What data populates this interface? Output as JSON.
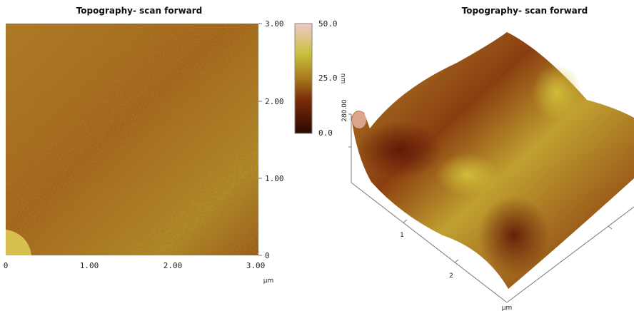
{
  "left": {
    "title": "Topography- scan forward",
    "y_ticks": [
      "3.00",
      "2.00",
      "1.00",
      "0"
    ],
    "x_ticks": [
      "0",
      "1.00",
      "2.00",
      "3.00"
    ],
    "x_unit": "µm",
    "colorbar": {
      "ticks": [
        "50.0",
        "25.0",
        "0.0"
      ],
      "unit": "nm"
    }
  },
  "right": {
    "title": "Topography- scan forward",
    "z_label": "280.00",
    "axis_ticks": [
      "1",
      "2"
    ],
    "unit": "µm"
  }
}
